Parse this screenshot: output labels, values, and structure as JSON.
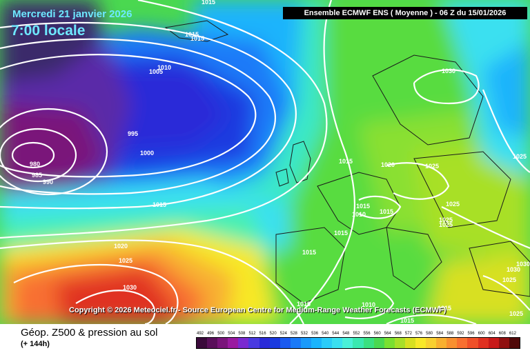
{
  "header": {
    "date": "Mercredi 21 janvier 2026",
    "time": "7:00 locale",
    "model": "Ensemble ECMWF ENS  ( Moyenne )  - 06 Z du 15/01/2026"
  },
  "copyright": "Copyright © 2026 Meteociel.fr - Source European Centre for Medium-Range Weather Forecasts (ECMWF)",
  "footer": {
    "title": "Géop. Z500 & pression au sol",
    "subtitle": "(+ 144h)"
  },
  "scale": {
    "labels": [
      "492",
      "496",
      "500",
      "504",
      "508",
      "512",
      "516",
      "520",
      "524",
      "528",
      "532",
      "536",
      "540",
      "544",
      "548",
      "552",
      "556",
      "560",
      "564",
      "568",
      "572",
      "576",
      "580",
      "584",
      "588",
      "592",
      "596",
      "600",
      "604",
      "608",
      "612"
    ],
    "colors": [
      "#3a0a3a",
      "#5a0f5a",
      "#7a147a",
      "#9a1aa0",
      "#7a2ad0",
      "#4a3ae0",
      "#2a2ad8",
      "#1a3ae0",
      "#1a5af0",
      "#1a7af8",
      "#1a9afa",
      "#1ab4fc",
      "#2accf8",
      "#3ae0f0",
      "#4af0d8",
      "#3ae8b0",
      "#3ae080",
      "#4ad850",
      "#7ae030",
      "#a8e028",
      "#d8e020",
      "#f8e828",
      "#f8d030",
      "#f8b030",
      "#f89030",
      "#f87030",
      "#f05028",
      "#e03020",
      "#c81818",
      "#901010",
      "#500808"
    ]
  },
  "isobar_labels": [
    "1015",
    "1015",
    "1015",
    "1010",
    "1005",
    "995",
    "1000",
    "980",
    "985",
    "990",
    "1015",
    "1020",
    "1025",
    "1030",
    "1015",
    "1020",
    "1025",
    "1030",
    "1025",
    "1015",
    "1010",
    "1015",
    "1015",
    "1015",
    "1025",
    "1025",
    "1025",
    "1015",
    "1015",
    "1010",
    "1015",
    "1030",
    "1025",
    "1025",
    "1030"
  ]
}
